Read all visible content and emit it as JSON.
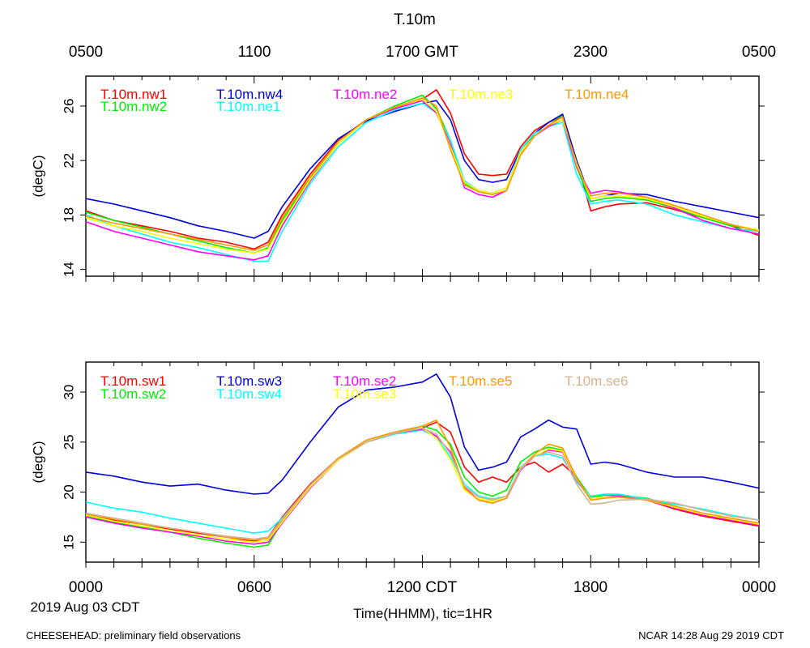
{
  "title": "T.10m",
  "top_axis_ticks": [
    "0500",
    "1100",
    "1700 GMT",
    "2300",
    "0500"
  ],
  "bottom_axis_ticks": [
    "0000",
    "0600",
    "1200 CDT",
    "1800",
    "0000"
  ],
  "xlabel": "Time(HHMM), tic=1HR",
  "date_label": "2019 Aug 03 CDT",
  "footer_left": "CHEESEHEAD: preliminary field observations",
  "footer_right": "NCAR 14:28 Aug 29 2019 CDT",
  "chart_data": [
    {
      "type": "line",
      "title": "T.10m",
      "ylabel": "(degC)",
      "ylim": [
        13.5,
        28.2
      ],
      "yticks": [
        14,
        18,
        22,
        26
      ],
      "x_unit": "hours since 0000 CDT",
      "xlim": [
        0,
        24
      ],
      "x": [
        0,
        1,
        2,
        3,
        4,
        5,
        6,
        6.5,
        7,
        8,
        9,
        10,
        11,
        12,
        12.5,
        13,
        13.5,
        14,
        14.5,
        15,
        15.5,
        16,
        16.5,
        17,
        17.5,
        18,
        18.5,
        19,
        20,
        21,
        22,
        23,
        24
      ],
      "series": [
        {
          "name": "T.10m.nw1",
          "color": "#ff0000",
          "values": [
            18.3,
            17.6,
            17.2,
            16.8,
            16.3,
            16.0,
            15.5,
            16.0,
            18.0,
            21.0,
            23.5,
            25.0,
            25.8,
            26.5,
            27.2,
            25.5,
            22.5,
            21.0,
            20.9,
            21.0,
            23.0,
            24.2,
            24.8,
            25.2,
            22.0,
            18.3,
            18.6,
            18.8,
            18.9,
            18.4,
            17.8,
            17.2,
            16.5
          ]
        },
        {
          "name": "T.10m.nw2",
          "color": "#00ee00",
          "values": [
            18.2,
            17.6,
            17.1,
            16.6,
            16.1,
            15.6,
            15.2,
            15.6,
            17.6,
            20.7,
            23.4,
            25.0,
            26.0,
            26.8,
            25.8,
            23.5,
            20.3,
            19.8,
            19.6,
            20.0,
            22.5,
            24.0,
            24.8,
            25.3,
            21.5,
            19.0,
            19.2,
            19.3,
            19.1,
            18.5,
            17.8,
            17.2,
            16.9
          ]
        },
        {
          "name": "T.10m.nw4",
          "color": "#0000dd",
          "values": [
            19.2,
            18.8,
            18.3,
            17.8,
            17.2,
            16.8,
            16.3,
            16.8,
            18.6,
            21.4,
            23.6,
            24.9,
            25.6,
            26.2,
            26.4,
            25.0,
            22.0,
            20.6,
            20.4,
            20.6,
            22.8,
            24.0,
            24.8,
            25.4,
            22.0,
            19.2,
            19.4,
            19.6,
            19.5,
            19.0,
            18.6,
            18.2,
            17.8
          ]
        },
        {
          "name": "T.10m.ne1",
          "color": "#00ffff",
          "values": [
            18.0,
            17.2,
            16.6,
            16.0,
            15.6,
            15.1,
            14.6,
            14.6,
            16.8,
            20.3,
            23.0,
            24.8,
            25.7,
            26.2,
            25.5,
            23.5,
            20.5,
            19.8,
            19.6,
            20.0,
            22.8,
            24.0,
            24.5,
            24.8,
            21.0,
            18.8,
            19.0,
            19.1,
            18.8,
            18.0,
            17.5,
            17.0,
            16.8
          ]
        },
        {
          "name": "T.10m.ne2",
          "color": "#ff00ff",
          "values": [
            17.5,
            16.8,
            16.3,
            15.8,
            15.3,
            15.0,
            14.7,
            15.0,
            17.2,
            20.5,
            23.2,
            25.0,
            25.8,
            26.4,
            25.5,
            23.2,
            20.0,
            19.5,
            19.3,
            19.8,
            22.6,
            23.8,
            24.5,
            25.0,
            21.5,
            19.6,
            19.8,
            19.7,
            19.3,
            18.5,
            17.6,
            17.0,
            16.6
          ]
        },
        {
          "name": "T.10m.ne3",
          "color": "#ffff00",
          "values": [
            17.8,
            17.2,
            16.8,
            16.3,
            15.9,
            15.5,
            15.2,
            15.5,
            17.4,
            20.6,
            23.2,
            25.0,
            25.9,
            26.5,
            25.6,
            23.0,
            20.4,
            19.8,
            19.6,
            20.0,
            22.6,
            23.8,
            24.6,
            25.0,
            21.8,
            19.2,
            19.4,
            19.4,
            19.2,
            18.6,
            17.9,
            17.3,
            16.9
          ]
        },
        {
          "name": "T.10m.ne4",
          "color": "#ff9900",
          "values": [
            17.9,
            17.4,
            17.0,
            16.6,
            16.2,
            15.8,
            15.4,
            15.8,
            17.8,
            20.8,
            23.4,
            25.0,
            25.9,
            26.6,
            26.0,
            22.8,
            20.2,
            19.7,
            19.5,
            19.8,
            22.4,
            23.8,
            24.6,
            25.2,
            21.6,
            19.4,
            19.6,
            19.6,
            19.3,
            18.7,
            18.0,
            17.3,
            16.8
          ]
        }
      ],
      "legend": [
        [
          "T.10m.nw1",
          "T.10m.nw4",
          "T.10m.ne2",
          "T.10m.ne3",
          "T.10m.ne4"
        ],
        [
          "T.10m.nw2",
          "T.10m.ne1"
        ]
      ]
    },
    {
      "type": "line",
      "title": "",
      "ylabel": "(degC)",
      "ylim": [
        13.0,
        33.0
      ],
      "yticks": [
        15,
        20,
        25,
        30
      ],
      "x_unit": "hours since 0000 CDT",
      "xlim": [
        0,
        24
      ],
      "x": [
        0,
        1,
        2,
        3,
        4,
        5,
        6,
        6.5,
        7,
        8,
        9,
        10,
        11,
        12,
        12.5,
        13,
        13.5,
        14,
        14.5,
        15,
        15.5,
        16,
        16.5,
        17,
        17.5,
        18,
        18.5,
        19,
        20,
        21,
        22,
        23,
        24
      ],
      "series": [
        {
          "name": "T.10m.sw1",
          "color": "#ff0000",
          "values": [
            17.8,
            17.2,
            16.8,
            16.3,
            15.9,
            15.5,
            15.1,
            15.5,
            17.5,
            20.8,
            23.4,
            25.0,
            25.8,
            26.4,
            27.0,
            26.0,
            22.5,
            21.0,
            21.5,
            21.0,
            22.5,
            23.0,
            22.0,
            22.8,
            21.5,
            19.3,
            19.5,
            19.6,
            19.2,
            18.3,
            17.6,
            17.1,
            16.6
          ]
        },
        {
          "name": "T.10m.sw2",
          "color": "#00ee00",
          "values": [
            17.6,
            17.0,
            16.5,
            16.0,
            15.4,
            14.9,
            14.5,
            14.7,
            17.0,
            20.5,
            23.3,
            25.0,
            25.9,
            26.6,
            26.2,
            24.8,
            21.5,
            20.0,
            19.6,
            20.2,
            23.0,
            24.0,
            24.5,
            24.2,
            21.5,
            19.5,
            19.7,
            19.7,
            19.4,
            18.6,
            17.8,
            17.3,
            16.8
          ]
        },
        {
          "name": "T.10m.sw3",
          "color": "#0000dd",
          "values": [
            22.0,
            21.6,
            21.0,
            20.6,
            20.8,
            20.2,
            19.8,
            19.9,
            21.2,
            25.0,
            28.5,
            30.2,
            30.5,
            31.0,
            31.8,
            29.5,
            24.5,
            22.2,
            22.5,
            23.0,
            25.5,
            26.3,
            27.2,
            26.5,
            26.3,
            22.8,
            23.0,
            22.8,
            22.0,
            21.5,
            21.5,
            21.0,
            20.4
          ]
        },
        {
          "name": "T.10m.sw4",
          "color": "#00ffff",
          "values": [
            19.0,
            18.4,
            18.0,
            17.4,
            16.9,
            16.4,
            15.9,
            16.1,
            17.4,
            20.6,
            23.2,
            25.0,
            25.8,
            26.2,
            25.5,
            23.5,
            20.8,
            19.6,
            19.3,
            19.6,
            22.5,
            23.6,
            23.8,
            23.4,
            21.0,
            19.6,
            19.8,
            19.8,
            19.3,
            18.8,
            18.3,
            17.7,
            17.2
          ]
        },
        {
          "name": "T.10m.se2",
          "color": "#ff00ff",
          "values": [
            17.5,
            16.9,
            16.4,
            16.0,
            15.6,
            15.1,
            14.8,
            15.0,
            16.9,
            20.4,
            23.2,
            25.0,
            25.9,
            26.3,
            25.6,
            24.0,
            20.5,
            19.2,
            18.9,
            19.4,
            22.2,
            23.6,
            24.2,
            24.0,
            21.2,
            19.3,
            19.5,
            19.6,
            19.2,
            18.4,
            17.7,
            17.2,
            16.7
          ]
        },
        {
          "name": "T.10m.se3",
          "color": "#ffff00",
          "values": [
            17.7,
            17.1,
            16.6,
            16.2,
            15.7,
            15.3,
            15.0,
            15.2,
            17.0,
            20.5,
            23.2,
            25.0,
            25.9,
            26.4,
            25.4,
            23.2,
            20.2,
            19.3,
            19.1,
            19.5,
            22.4,
            23.6,
            24.3,
            24.1,
            21.3,
            19.3,
            19.5,
            19.5,
            19.2,
            18.5,
            17.8,
            17.3,
            16.8
          ]
        },
        {
          "name": "T.10m.se5",
          "color": "#ff9900",
          "values": [
            17.8,
            17.3,
            16.8,
            16.4,
            16.0,
            15.5,
            15.2,
            15.4,
            17.2,
            20.7,
            23.4,
            25.2,
            26.0,
            26.6,
            27.2,
            24.5,
            20.4,
            19.2,
            18.9,
            19.4,
            22.3,
            23.8,
            24.8,
            24.4,
            21.4,
            19.2,
            19.4,
            19.5,
            19.2,
            18.6,
            17.9,
            17.4,
            16.9
          ]
        },
        {
          "name": "T.10m.se6",
          "color": "#d2b48c",
          "values": [
            17.9,
            17.4,
            16.9,
            16.4,
            16.0,
            15.6,
            15.3,
            15.5,
            17.3,
            20.7,
            23.3,
            25.0,
            25.9,
            26.4,
            25.8,
            23.8,
            20.6,
            19.5,
            19.2,
            19.6,
            22.3,
            23.6,
            24.0,
            23.6,
            20.8,
            18.8,
            18.9,
            19.2,
            19.3,
            18.9,
            18.2,
            17.6,
            17.2
          ]
        }
      ],
      "legend": [
        [
          "T.10m.sw1",
          "T.10m.sw3",
          "T.10m.se2",
          "T.10m.se5",
          "T.10m.se6"
        ],
        [
          "T.10m.sw2",
          "T.10m.sw4",
          "T.10m.se3"
        ]
      ]
    }
  ]
}
